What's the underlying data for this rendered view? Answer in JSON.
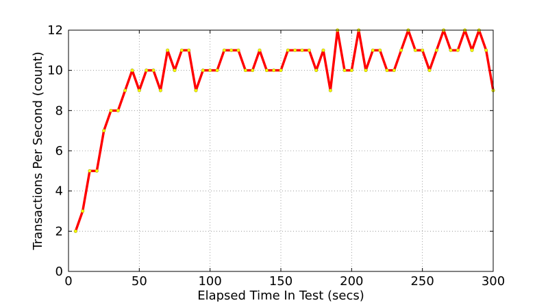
{
  "chart_data": {
    "type": "line",
    "title": "",
    "xlabel": "Elapsed Time In Test (secs)",
    "ylabel": "Transactions Per Second (count)",
    "xlim": [
      0,
      300
    ],
    "ylim": [
      0,
      12
    ],
    "xticks": [
      0,
      50,
      100,
      150,
      200,
      250,
      300
    ],
    "yticks": [
      0,
      2,
      4,
      6,
      8,
      10,
      12
    ],
    "grid": true,
    "line_color": "#ff0000",
    "marker_color": "#ffff00",
    "series": [
      {
        "x": [
          5,
          10,
          15,
          20,
          25,
          30,
          35,
          40,
          45,
          50,
          55,
          60,
          65,
          70,
          75,
          80,
          85,
          90,
          95,
          100,
          105,
          110,
          115,
          120,
          125,
          130,
          135,
          140,
          145,
          150,
          155,
          160,
          165,
          170,
          175,
          180,
          185,
          190,
          195,
          200,
          205,
          210,
          215,
          220,
          225,
          230,
          235,
          240,
          245,
          250,
          255,
          260,
          265,
          270,
          275,
          280,
          285,
          290,
          295,
          300
        ],
        "values": [
          2,
          3,
          5,
          5,
          7,
          8,
          8,
          9,
          10,
          9,
          10,
          10,
          9,
          11,
          10,
          11,
          11,
          9,
          10,
          10,
          10,
          11,
          11,
          11,
          10,
          10,
          11,
          10,
          10,
          10,
          11,
          11,
          11,
          11,
          10,
          11,
          9,
          12,
          10,
          10,
          12,
          10,
          11,
          11,
          10,
          10,
          11,
          12,
          11,
          11,
          10,
          11,
          12,
          11,
          11,
          12,
          11,
          12,
          11,
          9
        ]
      }
    ]
  }
}
